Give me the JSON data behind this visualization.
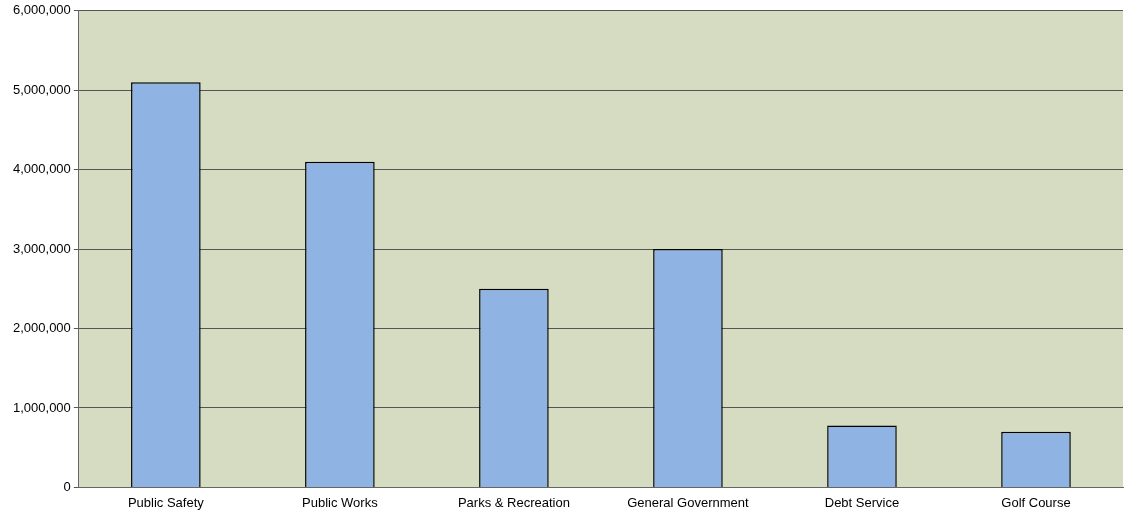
{
  "chart_data": {
    "type": "bar",
    "categories": [
      "Public Safety",
      "Public Works",
      "Parks & Recreation",
      "General Government",
      "Debt Service",
      "Golf Course"
    ],
    "values": [
      5100000,
      4100000,
      2500000,
      3000000,
      780000,
      700000
    ],
    "color": "#8fb4e3",
    "ylim": [
      0,
      6000000
    ],
    "yticks": [
      0,
      {
        "value": 1000000,
        "label": "1,000,000"
      },
      {
        "value": 2000000,
        "label": "2,000,000"
      },
      {
        "value": 3000000,
        "label": "3,000,000"
      },
      {
        "value": 4000000,
        "label": "4,000,000"
      },
      {
        "value": 5000000,
        "label": "5,000,000"
      },
      {
        "value": 6000000,
        "label": "6,000,000"
      }
    ],
    "grid": "y",
    "legend": false
  }
}
